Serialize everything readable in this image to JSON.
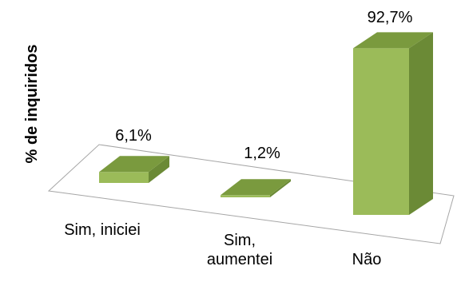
{
  "chart_data": {
    "type": "bar",
    "categories": [
      "Sim, iniciei",
      "Sim,\naumentei",
      "Não"
    ],
    "values": [
      6.1,
      1.2,
      92.7
    ],
    "data_labels": [
      "6,1%",
      "1,2%",
      "92,7%"
    ],
    "title": "",
    "xlabel": "",
    "ylabel": "% de inquiridos",
    "ylim": [
      0,
      100
    ],
    "grid": false,
    "legend": "none",
    "three_d": true,
    "colors": {
      "front": "#9bbb59",
      "top": "#7a9a3e",
      "side": "#6b8a36",
      "floor": "#ffffff",
      "floor_border": "#a6a6a6"
    }
  }
}
